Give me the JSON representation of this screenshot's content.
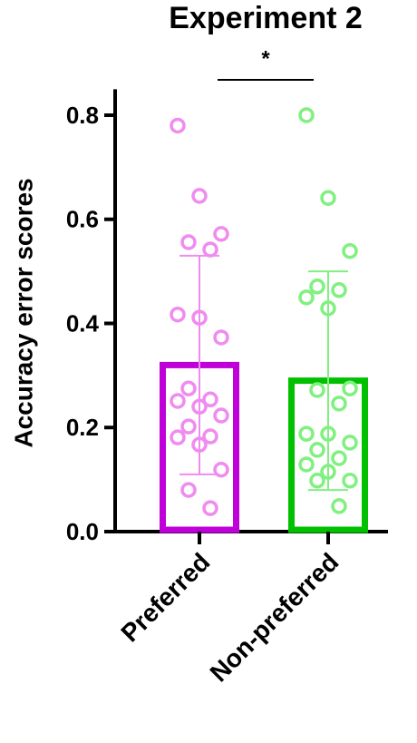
{
  "chart_data": {
    "type": "bar_scatter",
    "title": "Experiment 2",
    "ylabel": "Accuracy error scores",
    "categories": [
      "Preferred",
      "Non-preferred"
    ],
    "values": [
      0.32,
      0.29
    ],
    "errors": [
      0.21,
      0.21
    ],
    "colors": [
      "#c000d8",
      "#00c000"
    ],
    "point_colors": [
      "#f08cf0",
      "#80f080"
    ],
    "points": [
      [
        0.78,
        0.645,
        0.572,
        0.556,
        0.542,
        0.417,
        0.411,
        0.373,
        0.275,
        0.254,
        0.251,
        0.24,
        0.223,
        0.202,
        0.183,
        0.181,
        0.167,
        0.119,
        0.08,
        0.045
      ],
      [
        0.8,
        0.641,
        0.539,
        0.471,
        0.464,
        0.45,
        0.429,
        0.275,
        0.272,
        0.246,
        0.188,
        0.188,
        0.171,
        0.157,
        0.141,
        0.129,
        0.115,
        0.098,
        0.098,
        0.049
      ]
    ],
    "annotation": "*",
    "ylim": [
      0,
      0.85
    ],
    "yticks": [
      {
        "value": 0,
        "label": "0.0"
      },
      0.2,
      0.4,
      0.6,
      0.8
    ]
  }
}
